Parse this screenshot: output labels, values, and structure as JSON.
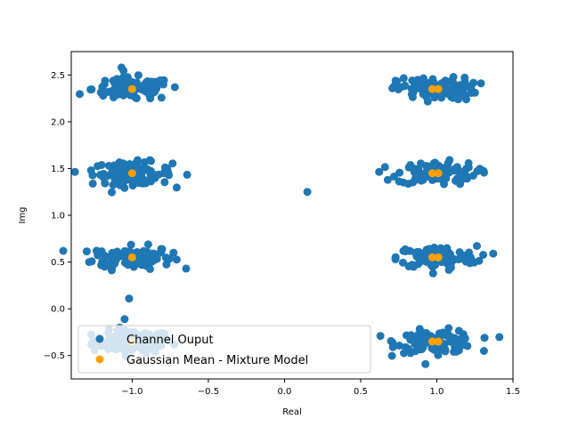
{
  "chart_data": {
    "type": "scatter",
    "title": "",
    "xlabel": "Real",
    "ylabel": "Img",
    "xlim": [
      -1.4,
      1.5
    ],
    "ylim": [
      -0.75,
      2.75
    ],
    "xticks": [
      -1.0,
      -0.5,
      0.0,
      0.5,
      1.0,
      1.5
    ],
    "xtick_labels": [
      "−1.0",
      "−0.5",
      "0.0",
      "0.5",
      "1.0",
      "1.5"
    ],
    "yticks": [
      -0.5,
      0.0,
      0.5,
      1.0,
      1.5,
      2.0,
      2.5
    ],
    "ytick_labels": [
      "−0.5",
      "0.0",
      "0.5",
      "1.0",
      "1.5",
      "2.0",
      "2.5"
    ],
    "grid": false,
    "legend": {
      "placement": "lower-left"
    },
    "series": [
      {
        "name": "Channel Ouput",
        "color": "#1f77b4",
        "cluster_centers": [
          [
            -1.0,
            -0.35
          ],
          [
            -1.0,
            0.55
          ],
          [
            -1.0,
            1.45
          ],
          [
            -1.0,
            2.35
          ],
          [
            1.0,
            -0.35
          ],
          [
            1.0,
            0.55
          ],
          [
            1.0,
            1.45
          ],
          [
            1.0,
            2.35
          ]
        ],
        "cluster_spread": [
          0.13,
          0.06
        ],
        "outliers": [
          [
            0.15,
            1.25
          ],
          [
            1.37,
            0.59
          ],
          [
            -1.02,
            0.11
          ],
          [
            -1.05,
            -0.11
          ],
          [
            -1.07,
            2.58
          ],
          [
            -1.27,
            1.48
          ],
          [
            -0.72,
            2.37
          ],
          [
            -1.18,
            0.45
          ]
        ]
      },
      {
        "name": "Gaussian Mean - Mixture Model",
        "color": "#ff9f00",
        "points": [
          [
            -1.0,
            -0.35
          ],
          [
            -1.0,
            0.55
          ],
          [
            -1.0,
            1.45
          ],
          [
            -1.0,
            2.35
          ],
          [
            0.97,
            -0.35
          ],
          [
            1.01,
            -0.35
          ],
          [
            0.97,
            0.55
          ],
          [
            1.01,
            0.55
          ],
          [
            0.97,
            1.45
          ],
          [
            1.01,
            1.45
          ],
          [
            0.97,
            2.35
          ],
          [
            1.01,
            2.35
          ]
        ]
      }
    ]
  }
}
